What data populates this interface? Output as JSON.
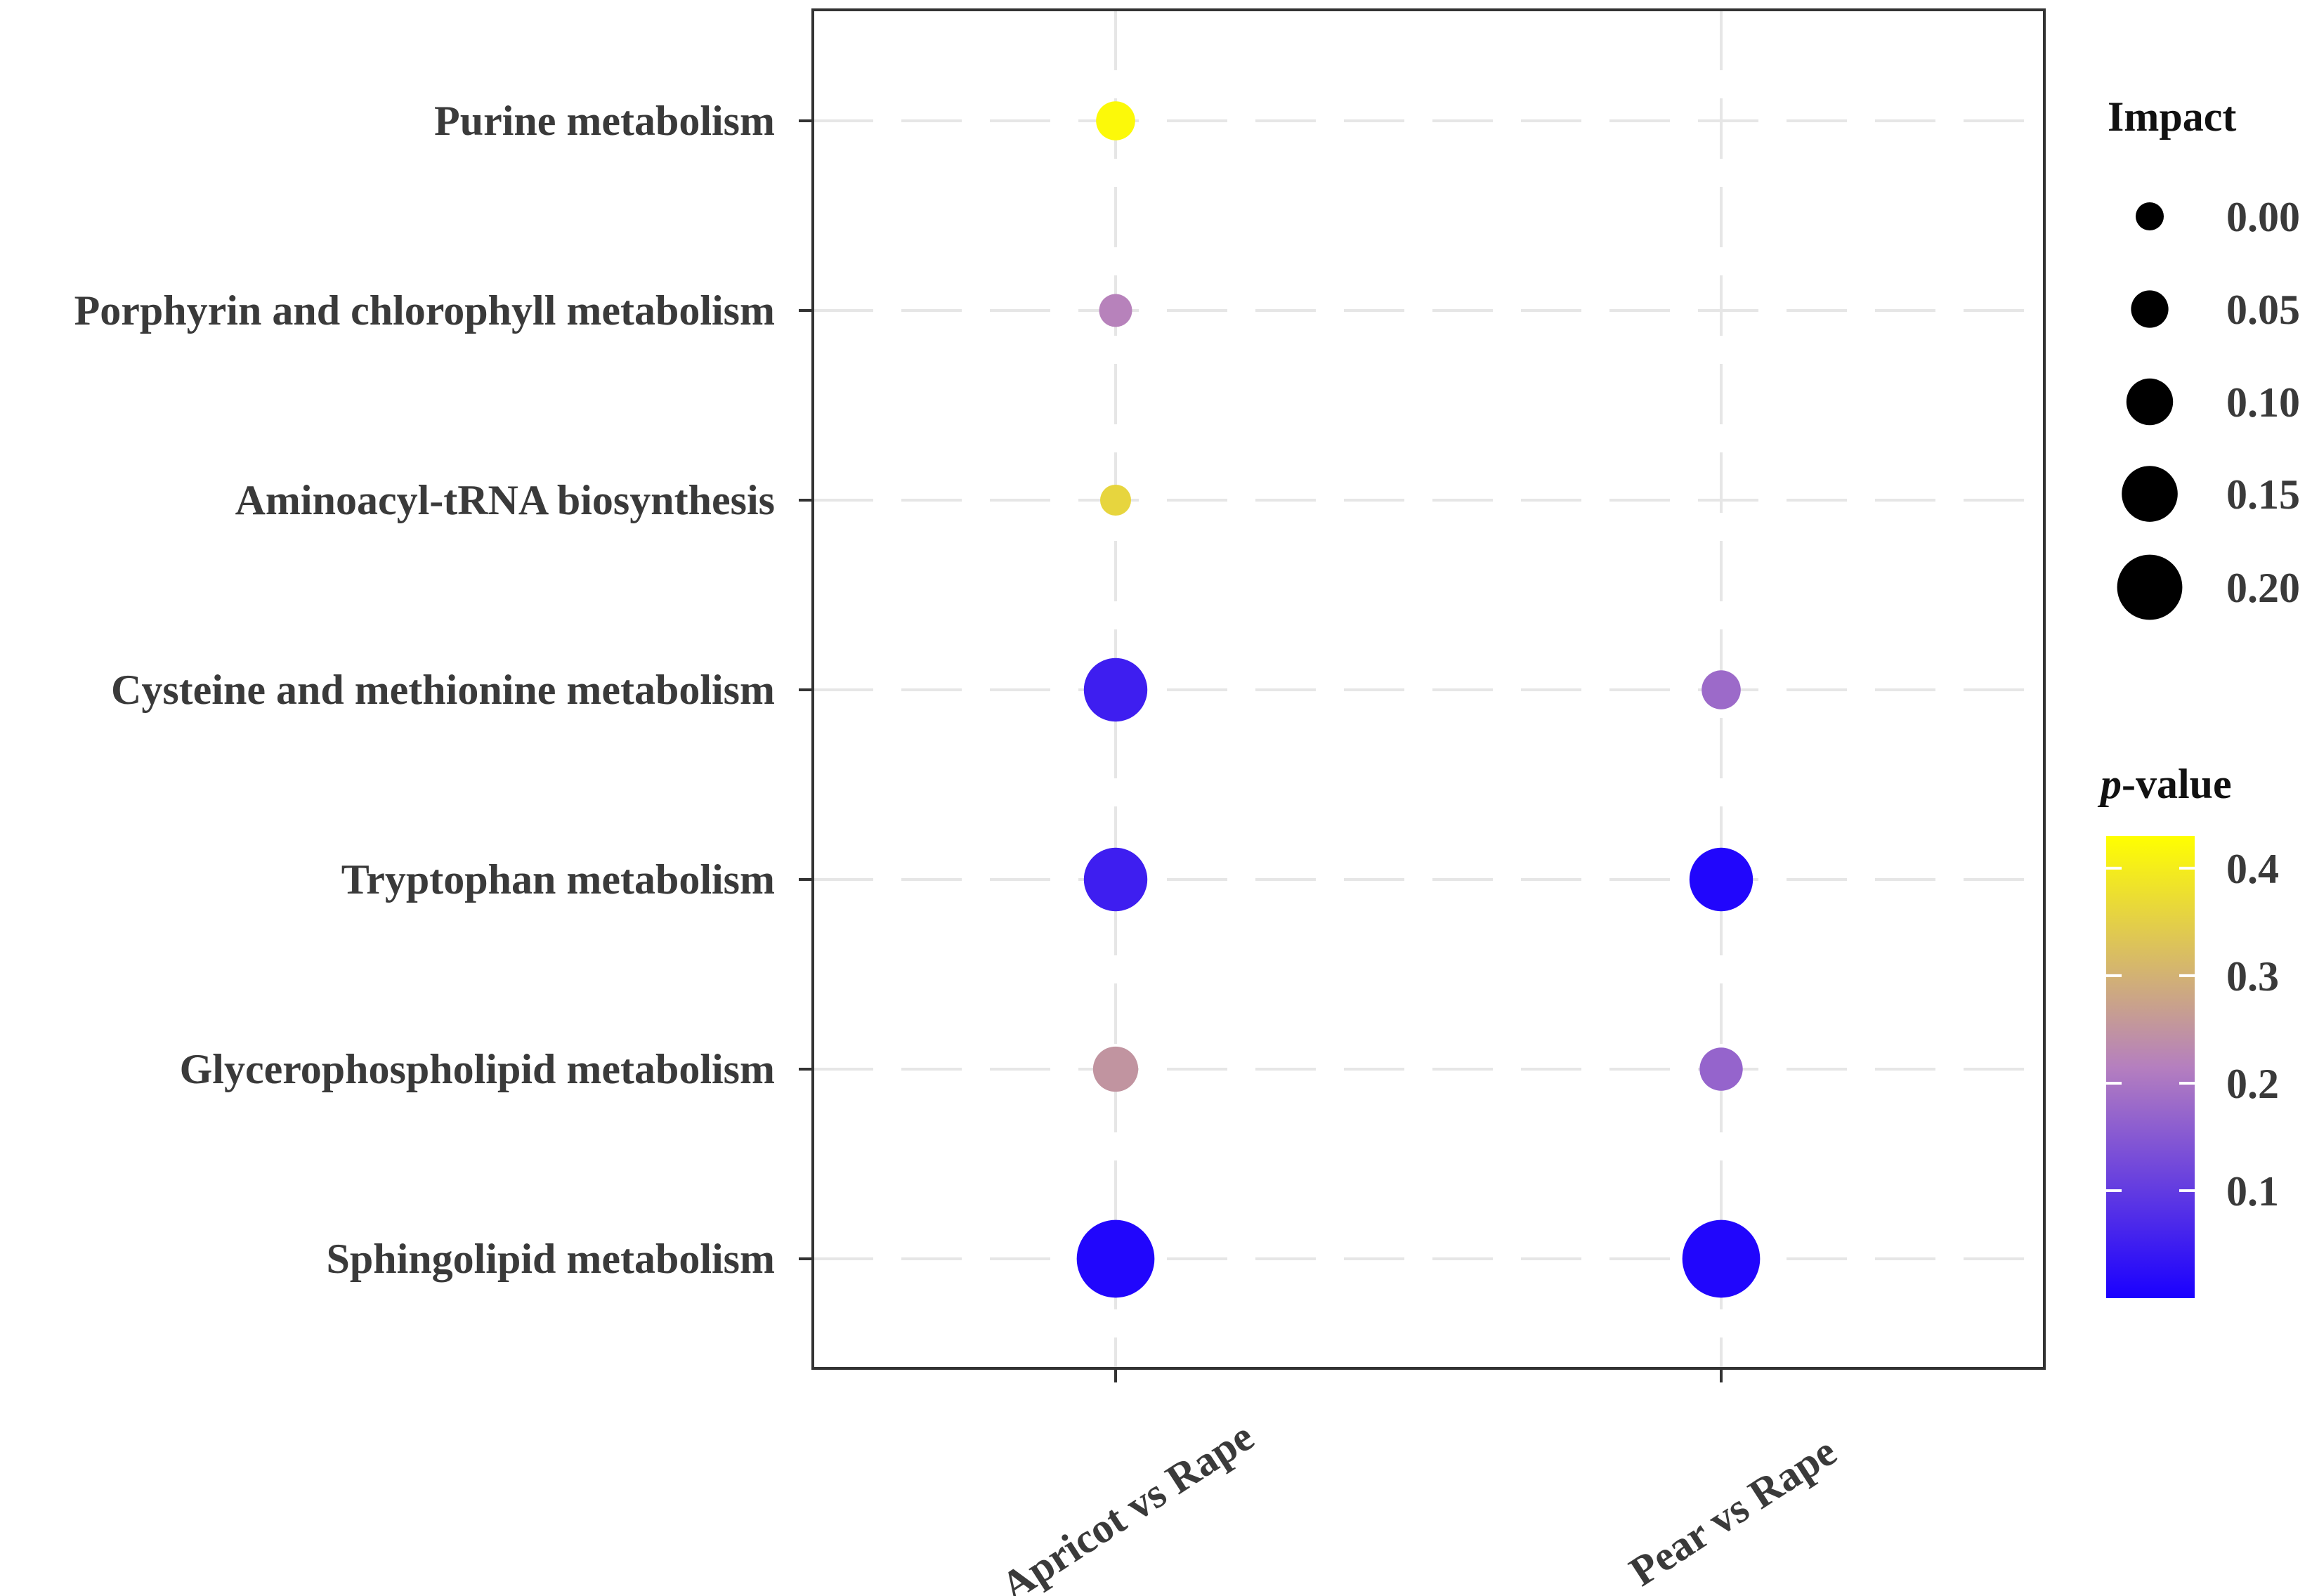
{
  "chart_data": {
    "type": "scatter",
    "subtype": "bubble",
    "categories_x": [
      "Apricot vs Rape",
      "Pear vs Rape"
    ],
    "categories_y": [
      "Purine metabolism",
      "Porphyrin and chlorophyll metabolism",
      "Aminoacyl-tRNA biosynthesis",
      "Cysteine and methionine metabolism",
      "Tryptophan metabolism",
      "Glycerophospholipid metabolism",
      "Sphingolipid metabolism"
    ],
    "points": [
      {
        "x": "Apricot vs Rape",
        "y": "Purine metabolism",
        "impact": 0.04,
        "p_value": 0.42
      },
      {
        "x": "Apricot vs Rape",
        "y": "Porphyrin and chlorophyll metabolism",
        "impact": 0.01,
        "p_value": 0.22
      },
      {
        "x": "Apricot vs Rape",
        "y": "Aminoacyl-tRNA biosynthesis",
        "impact": 0.0,
        "p_value": 0.36
      },
      {
        "x": "Apricot vs Rape",
        "y": "Cysteine and methionine metabolism",
        "impact": 0.16,
        "p_value": 0.05
      },
      {
        "x": "Apricot vs Rape",
        "y": "Tryptophan metabolism",
        "impact": 0.16,
        "p_value": 0.05
      },
      {
        "x": "Apricot vs Rape",
        "y": "Glycerophospholipid metabolism",
        "impact": 0.07,
        "p_value": 0.25
      },
      {
        "x": "Apricot vs Rape",
        "y": "Sphingolipid metabolism",
        "impact": 0.23,
        "p_value": 0.01
      },
      {
        "x": "Pear vs Rape",
        "y": "Cysteine and methionine metabolism",
        "impact": 0.04,
        "p_value": 0.18
      },
      {
        "x": "Pear vs Rape",
        "y": "Tryptophan metabolism",
        "impact": 0.16,
        "p_value": 0.01
      },
      {
        "x": "Pear vs Rape",
        "y": "Glycerophospholipid metabolism",
        "impact": 0.06,
        "p_value": 0.17
      },
      {
        "x": "Pear vs Rape",
        "y": "Sphingolipid metabolism",
        "impact": 0.23,
        "p_value": 0.01
      }
    ],
    "size_legend": {
      "title": "Impact",
      "values": [
        0.0,
        0.05,
        0.1,
        0.15,
        0.2
      ],
      "labels": [
        "0.00",
        "0.05",
        "0.10",
        "0.15",
        "0.20"
      ]
    },
    "color_legend": {
      "title_italic": "p",
      "title_rest": "-value",
      "range": [
        0.0,
        0.43
      ],
      "ticks": [
        0.1,
        0.2,
        0.3,
        0.4
      ],
      "tick_labels": [
        "0.1",
        "0.2",
        "0.3",
        "0.4"
      ],
      "color_low": "#1a00ff",
      "color_mid": "#b57fbf",
      "color_high": "#ffff00"
    },
    "grid": true,
    "legend_position": "right"
  },
  "colors": {
    "axis": "#333333",
    "grid": "#e6e6e6",
    "text": "#3a3a3a"
  }
}
